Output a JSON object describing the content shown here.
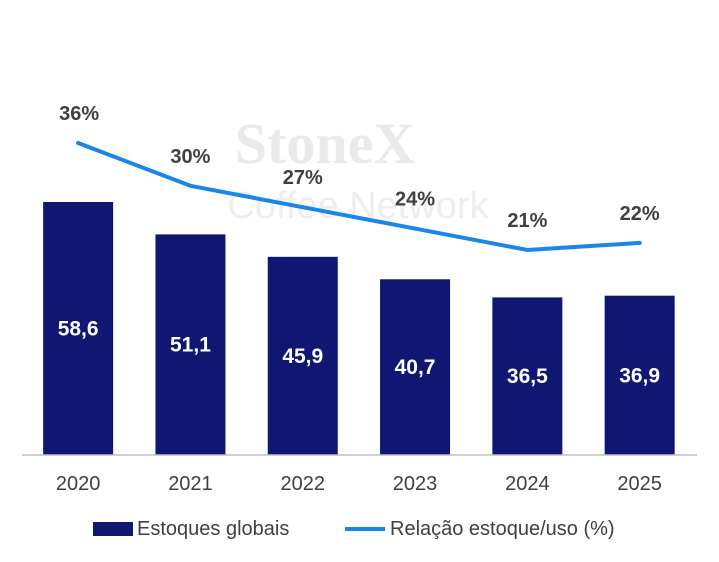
{
  "watermark": {
    "brand": "StoneX",
    "subtitle": "Coffee Network"
  },
  "chart_data": {
    "type": "bar",
    "categories": [
      "2020",
      "2021",
      "2022",
      "2023",
      "2024",
      "2025"
    ],
    "series": [
      {
        "name": "Estoques globais",
        "type": "bar",
        "color": "#0f1773",
        "values": [
          58.6,
          51.1,
          45.9,
          40.7,
          36.5,
          36.9
        ],
        "labels": [
          "58,6",
          "51,1",
          "45,9",
          "40,7",
          "36,5",
          "36,9"
        ]
      },
      {
        "name": "Relação estoque/uso (%)",
        "type": "line",
        "color": "#1a86e8",
        "values": [
          36,
          30,
          27,
          24,
          21,
          22
        ],
        "labels": [
          "36%",
          "30%",
          "27%",
          "24%",
          "21%",
          "22%"
        ]
      }
    ],
    "legend": {
      "position": "bottom"
    },
    "grid": false
  }
}
